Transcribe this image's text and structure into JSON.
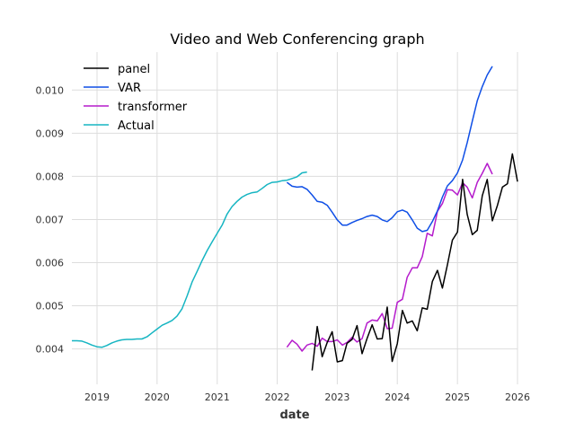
{
  "chart_data": {
    "type": "line",
    "title": "Video and Web Conferencing graph",
    "xlabel": "date",
    "ylabel": "",
    "xlim": [
      "2018-08-01",
      "2026-01-01"
    ],
    "ylim": [
      0.00318,
      0.01088
    ],
    "grid": true,
    "legend_position": "top-left",
    "x_ticks": [
      "2019",
      "2020",
      "2021",
      "2022",
      "2023",
      "2024",
      "2025",
      "2026"
    ],
    "y_ticks": [
      "0.004",
      "0.005",
      "0.006",
      "0.007",
      "0.008",
      "0.009",
      "0.010"
    ],
    "series": [
      {
        "name": "panel",
        "color": "#000000",
        "points": [
          [
            "2022-08-01",
            0.0035
          ],
          [
            "2022-09-01",
            0.00452
          ],
          [
            "2022-10-01",
            0.00382
          ],
          [
            "2022-11-01",
            0.00415
          ],
          [
            "2022-12-01",
            0.0044
          ],
          [
            "2023-01-01",
            0.0037
          ],
          [
            "2023-02-01",
            0.00373
          ],
          [
            "2023-03-01",
            0.00413
          ],
          [
            "2023-04-01",
            0.00422
          ],
          [
            "2023-05-01",
            0.00454
          ],
          [
            "2023-06-01",
            0.00389
          ],
          [
            "2023-07-01",
            0.00424
          ],
          [
            "2023-08-01",
            0.00456
          ],
          [
            "2023-09-01",
            0.00423
          ],
          [
            "2023-10-01",
            0.00424
          ],
          [
            "2023-11-01",
            0.00497
          ],
          [
            "2023-12-01",
            0.00371
          ],
          [
            "2024-01-01",
            0.00412
          ],
          [
            "2024-02-01",
            0.00489
          ],
          [
            "2024-03-01",
            0.0046
          ],
          [
            "2024-04-01",
            0.00465
          ],
          [
            "2024-05-01",
            0.00442
          ],
          [
            "2024-06-01",
            0.00495
          ],
          [
            "2024-07-01",
            0.00492
          ],
          [
            "2024-08-01",
            0.00556
          ],
          [
            "2024-09-01",
            0.00582
          ],
          [
            "2024-10-01",
            0.00541
          ],
          [
            "2024-11-01",
            0.00595
          ],
          [
            "2024-12-01",
            0.00652
          ],
          [
            "2025-01-01",
            0.00671
          ],
          [
            "2025-02-01",
            0.00793
          ],
          [
            "2025-03-01",
            0.00712
          ],
          [
            "2025-04-01",
            0.00665
          ],
          [
            "2025-05-01",
            0.00675
          ],
          [
            "2025-06-01",
            0.00755
          ],
          [
            "2025-07-01",
            0.00793
          ],
          [
            "2025-08-01",
            0.00697
          ],
          [
            "2025-09-01",
            0.00733
          ],
          [
            "2025-10-01",
            0.00775
          ],
          [
            "2025-11-01",
            0.00783
          ],
          [
            "2025-12-01",
            0.00852
          ],
          [
            "2026-01-01",
            0.00788
          ]
        ]
      },
      {
        "name": "VAR",
        "color": "#0f4fe6",
        "points": [
          [
            "2022-03-01",
            0.00786
          ],
          [
            "2022-04-01",
            0.00777
          ],
          [
            "2022-05-01",
            0.00775
          ],
          [
            "2022-06-01",
            0.00776
          ],
          [
            "2022-07-01",
            0.0077
          ],
          [
            "2022-08-01",
            0.00757
          ],
          [
            "2022-09-01",
            0.00742
          ],
          [
            "2022-10-01",
            0.0074
          ],
          [
            "2022-11-01",
            0.00733
          ],
          [
            "2022-12-01",
            0.00717
          ],
          [
            "2023-01-01",
            0.00699
          ],
          [
            "2023-02-01",
            0.00687
          ],
          [
            "2023-03-01",
            0.00687
          ],
          [
            "2023-04-01",
            0.00693
          ],
          [
            "2023-05-01",
            0.00698
          ],
          [
            "2023-06-01",
            0.00702
          ],
          [
            "2023-07-01",
            0.00707
          ],
          [
            "2023-08-01",
            0.0071
          ],
          [
            "2023-09-01",
            0.00707
          ],
          [
            "2023-10-01",
            0.00699
          ],
          [
            "2023-11-01",
            0.00695
          ],
          [
            "2023-12-01",
            0.00704
          ],
          [
            "2024-01-01",
            0.00718
          ],
          [
            "2024-02-01",
            0.00722
          ],
          [
            "2024-03-01",
            0.00717
          ],
          [
            "2024-04-01",
            0.00699
          ],
          [
            "2024-05-01",
            0.0068
          ],
          [
            "2024-06-01",
            0.00672
          ],
          [
            "2024-07-01",
            0.00675
          ],
          [
            "2024-08-01",
            0.00695
          ],
          [
            "2024-09-01",
            0.0072
          ],
          [
            "2024-10-01",
            0.00752
          ],
          [
            "2024-11-01",
            0.00778
          ],
          [
            "2024-12-01",
            0.0079
          ],
          [
            "2025-01-01",
            0.00808
          ],
          [
            "2025-02-01",
            0.00838
          ],
          [
            "2025-03-01",
            0.00878
          ],
          [
            "2025-04-01",
            0.00928
          ],
          [
            "2025-05-01",
            0.00975
          ],
          [
            "2025-06-01",
            0.01008
          ],
          [
            "2025-07-01",
            0.01035
          ],
          [
            "2025-08-01",
            0.01055
          ]
        ]
      },
      {
        "name": "transformer",
        "color": "#b51ccc",
        "points": [
          [
            "2022-03-01",
            0.00404
          ],
          [
            "2022-04-01",
            0.0042
          ],
          [
            "2022-05-01",
            0.00411
          ],
          [
            "2022-06-01",
            0.00395
          ],
          [
            "2022-07-01",
            0.00409
          ],
          [
            "2022-08-01",
            0.00413
          ],
          [
            "2022-09-01",
            0.00406
          ],
          [
            "2022-10-01",
            0.00425
          ],
          [
            "2022-11-01",
            0.00417
          ],
          [
            "2022-12-01",
            0.00417
          ],
          [
            "2023-01-01",
            0.00421
          ],
          [
            "2023-02-01",
            0.00409
          ],
          [
            "2023-03-01",
            0.00415
          ],
          [
            "2023-04-01",
            0.00427
          ],
          [
            "2023-05-01",
            0.00416
          ],
          [
            "2023-06-01",
            0.00424
          ],
          [
            "2023-07-01",
            0.0046
          ],
          [
            "2023-08-01",
            0.00467
          ],
          [
            "2023-09-01",
            0.00465
          ],
          [
            "2023-10-01",
            0.00482
          ],
          [
            "2023-11-01",
            0.00447
          ],
          [
            "2023-12-01",
            0.00448
          ],
          [
            "2024-01-01",
            0.00508
          ],
          [
            "2024-02-01",
            0.00515
          ],
          [
            "2024-03-01",
            0.00566
          ],
          [
            "2024-04-01",
            0.00588
          ],
          [
            "2024-05-01",
            0.00588
          ],
          [
            "2024-06-01",
            0.00614
          ],
          [
            "2024-07-01",
            0.00668
          ],
          [
            "2024-08-01",
            0.00662
          ],
          [
            "2024-09-01",
            0.00719
          ],
          [
            "2024-10-01",
            0.00737
          ],
          [
            "2024-11-01",
            0.00769
          ],
          [
            "2024-12-01",
            0.00768
          ],
          [
            "2025-01-01",
            0.00757
          ],
          [
            "2025-02-01",
            0.00785
          ],
          [
            "2025-03-01",
            0.00775
          ],
          [
            "2025-04-01",
            0.0075
          ],
          [
            "2025-05-01",
            0.00786
          ],
          [
            "2025-06-01",
            0.00807
          ],
          [
            "2025-07-01",
            0.0083
          ],
          [
            "2025-08-01",
            0.00805
          ]
        ]
      },
      {
        "name": "Actual",
        "color": "#16b5c2",
        "points": [
          [
            "2018-08-01",
            0.00419
          ],
          [
            "2018-09-01",
            0.00419
          ],
          [
            "2018-10-01",
            0.00418
          ],
          [
            "2018-11-01",
            0.00414
          ],
          [
            "2018-12-01",
            0.00409
          ],
          [
            "2019-01-01",
            0.00405
          ],
          [
            "2019-02-01",
            0.00404
          ],
          [
            "2019-03-01",
            0.00408
          ],
          [
            "2019-04-01",
            0.00414
          ],
          [
            "2019-05-01",
            0.00418
          ],
          [
            "2019-06-01",
            0.00421
          ],
          [
            "2019-07-01",
            0.00422
          ],
          [
            "2019-08-01",
            0.00422
          ],
          [
            "2019-09-01",
            0.00423
          ],
          [
            "2019-10-01",
            0.00423
          ],
          [
            "2019-11-01",
            0.00428
          ],
          [
            "2019-12-01",
            0.00437
          ],
          [
            "2020-01-01",
            0.00446
          ],
          [
            "2020-02-01",
            0.00455
          ],
          [
            "2020-03-01",
            0.0046
          ],
          [
            "2020-04-01",
            0.00466
          ],
          [
            "2020-05-01",
            0.00476
          ],
          [
            "2020-06-01",
            0.00493
          ],
          [
            "2020-07-01",
            0.00522
          ],
          [
            "2020-08-01",
            0.00555
          ],
          [
            "2020-09-01",
            0.0058
          ],
          [
            "2020-10-01",
            0.00605
          ],
          [
            "2020-11-01",
            0.00628
          ],
          [
            "2020-12-01",
            0.00648
          ],
          [
            "2021-01-01",
            0.00668
          ],
          [
            "2021-02-01",
            0.00688
          ],
          [
            "2021-03-01",
            0.00712
          ],
          [
            "2021-04-01",
            0.0073
          ],
          [
            "2021-05-01",
            0.00742
          ],
          [
            "2021-06-01",
            0.00752
          ],
          [
            "2021-07-01",
            0.00758
          ],
          [
            "2021-08-01",
            0.00762
          ],
          [
            "2021-09-01",
            0.00764
          ],
          [
            "2021-10-01",
            0.00772
          ],
          [
            "2021-11-01",
            0.00781
          ],
          [
            "2021-12-01",
            0.00786
          ],
          [
            "2022-01-01",
            0.00787
          ],
          [
            "2022-02-01",
            0.0079
          ],
          [
            "2022-03-01",
            0.00791
          ],
          [
            "2022-04-01",
            0.00795
          ],
          [
            "2022-05-01",
            0.00799
          ],
          [
            "2022-06-01",
            0.00808
          ],
          [
            "2022-07-01",
            0.0081
          ]
        ]
      }
    ]
  }
}
